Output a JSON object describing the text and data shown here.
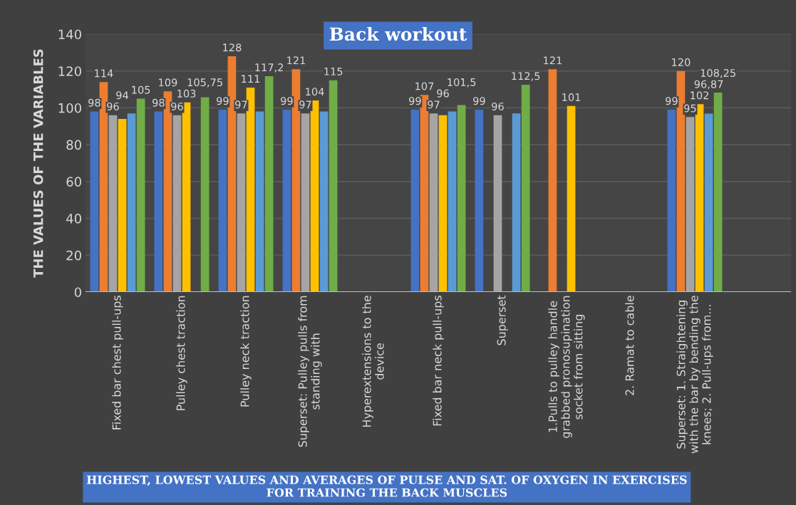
{
  "chart_data": {
    "type": "bar",
    "title": "Back workout",
    "ylabel": "THE VALUES OF THE VARIABLES",
    "annotations": [
      "HIGHEST, LOWEST VALUES AND AVERAGES OF PULSE AND SAT. OF OXYGEN IN EXERCISES FOR TRAINING THE BACK MUSCLES"
    ],
    "categories": [
      "Fixed bar chest pull-ups",
      "Pulley chest traction",
      "Pulley neck traction",
      "Superset: Pulley pulls from standing with",
      "Hyperextensions to the device",
      "Fixed bar neck pull-ups",
      "Superset",
      "1.Pulls to pulley handle grabbed pronosupination socket from sitting",
      "2. Ramat to cable",
      "Superset: 1. Straightening with the bar by bending the knees; 2. Pull-ups from...",
      null
    ],
    "series": [
      {
        "color": "#4472c4",
        "values": [
          98,
          98,
          99,
          99,
          null,
          99,
          99,
          null,
          null,
          99,
          null
        ],
        "value_labels": [
          "98",
          "98",
          "99",
          "99",
          null,
          "99",
          "99",
          null,
          null,
          "99",
          null
        ]
      },
      {
        "color": "#ed7d31",
        "values": [
          114,
          109,
          128,
          121,
          null,
          107,
          null,
          121,
          null,
          120,
          null
        ],
        "value_labels": [
          "114",
          "109",
          "128",
          "121",
          null,
          "107",
          null,
          "121",
          null,
          "120",
          null
        ]
      },
      {
        "color": "#a5a5a5",
        "values": [
          96,
          96,
          97,
          97,
          null,
          97,
          96,
          null,
          null,
          95,
          null
        ],
        "value_labels": [
          "96",
          "96",
          "97",
          "97",
          null,
          "97",
          "96",
          null,
          null,
          "95",
          null
        ]
      },
      {
        "color": "#ffc000",
        "values": [
          94,
          103,
          111,
          104,
          null,
          96,
          null,
          101,
          null,
          102,
          null
        ],
        "value_labels": [
          "94",
          "103",
          "111",
          "104",
          null,
          "96",
          null,
          "101",
          null,
          "102",
          null
        ]
      },
      {
        "color": "#5b9bd5",
        "values": [
          97,
          null,
          98,
          98,
          null,
          98,
          97,
          null,
          null,
          96.87,
          null
        ],
        "value_labels": [
          null,
          null,
          null,
          null,
          null,
          null,
          null,
          null,
          null,
          "96,87",
          null
        ]
      },
      {
        "color": "#70ad47",
        "values": [
          105,
          105.75,
          117.2,
          115,
          null,
          101.5,
          112.5,
          null,
          null,
          108.25,
          null
        ],
        "value_labels": [
          "105",
          "105,75",
          "117,2",
          "115",
          null,
          "101,5",
          "112,5",
          null,
          null,
          "108,25",
          null
        ]
      }
    ],
    "ylim": [
      0,
      140
    ],
    "yticks": [
      0,
      20,
      40,
      60,
      80,
      100,
      120,
      140
    ],
    "grid": "y"
  }
}
